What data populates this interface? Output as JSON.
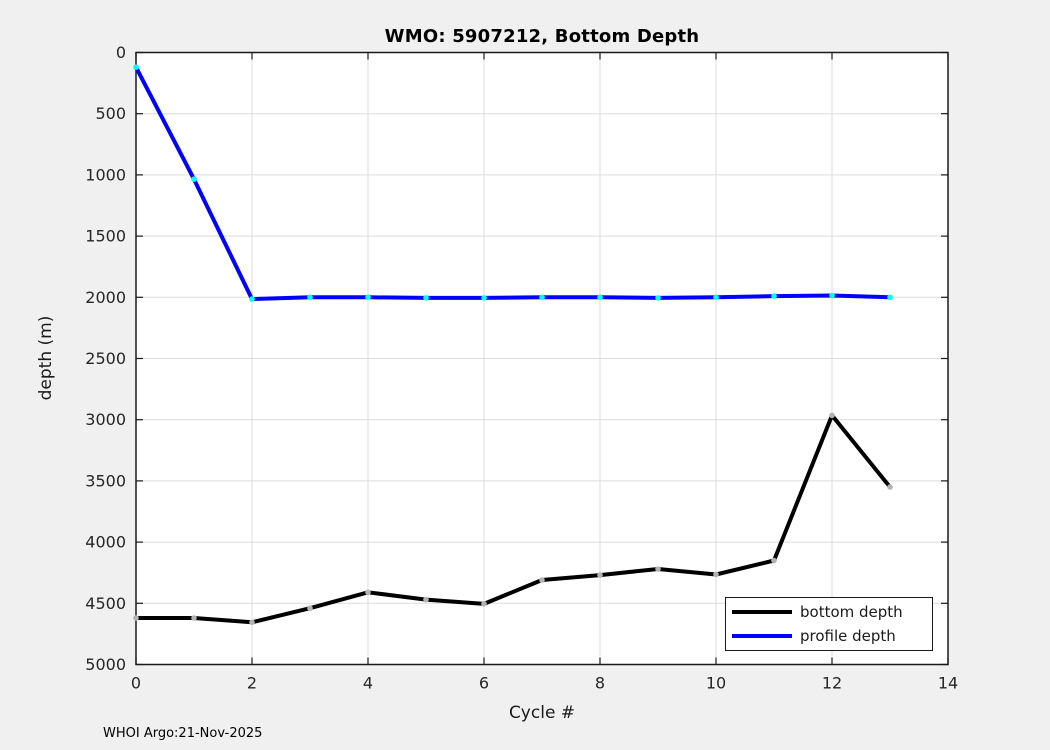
{
  "figure": {
    "title": "WMO: 5907212, Bottom Depth",
    "footer": "WHOI Argo:21-Nov-2025"
  },
  "chart_data": {
    "type": "line",
    "title": "WMO: 5907212, Bottom Depth",
    "xlabel": "Cycle #",
    "ylabel": "depth (m)",
    "xlim": [
      0,
      14
    ],
    "ylim": [
      0,
      5000
    ],
    "y_axis_reversed": true,
    "grid": true,
    "x_ticks": [
      0,
      2,
      4,
      6,
      8,
      10,
      12,
      14
    ],
    "y_ticks": [
      0,
      500,
      1000,
      1500,
      2000,
      2500,
      3000,
      3500,
      4000,
      4500,
      5000
    ],
    "x": [
      0,
      1,
      2,
      3,
      4,
      5,
      6,
      7,
      8,
      9,
      10,
      11,
      12,
      13
    ],
    "series": [
      {
        "name": "bottom depth",
        "color": "#000000",
        "marker_color": "#b3b3b3",
        "values": [
          4620,
          4620,
          4655,
          4540,
          4410,
          4470,
          4505,
          4310,
          4270,
          4220,
          4265,
          4150,
          2965,
          3550
        ]
      },
      {
        "name": "profile depth",
        "color": "#0000ff",
        "marker_color": "#00ffff",
        "values": [
          120,
          1035,
          2015,
          2000,
          2000,
          2005,
          2005,
          2000,
          2000,
          2005,
          2000,
          1990,
          1985,
          2000
        ]
      }
    ],
    "legend_position": "bottom-right"
  },
  "colors": {
    "figure_bg": "#f0f0f0",
    "plot_bg": "#ffffff",
    "grid": "#dcdcdc",
    "axis": "#1a1a1a"
  }
}
